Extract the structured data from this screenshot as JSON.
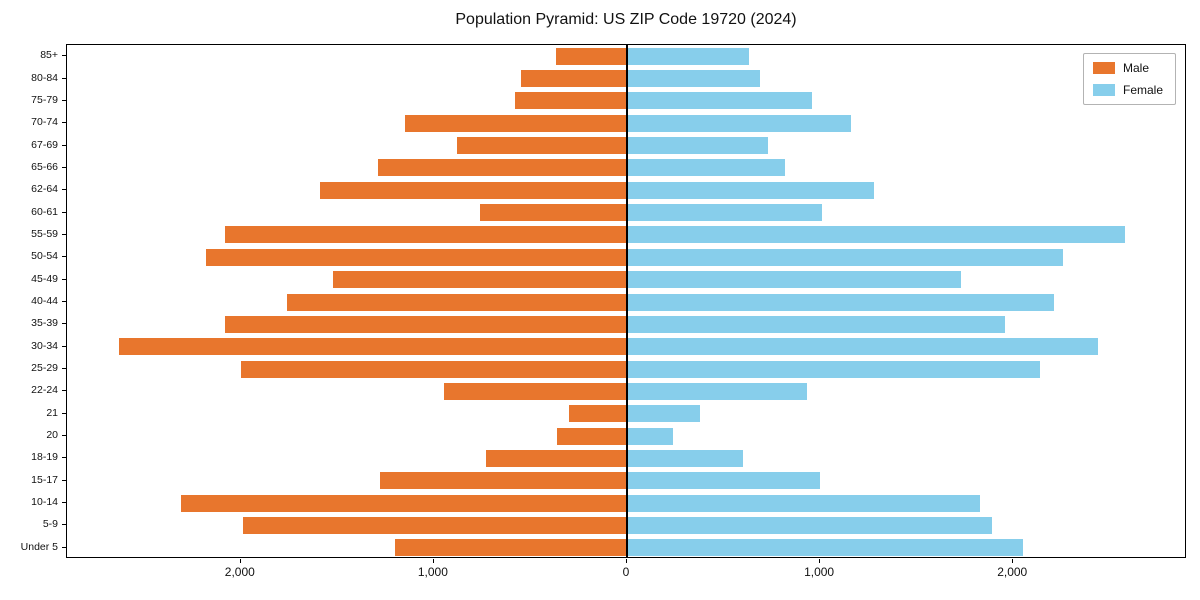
{
  "title": "Population Pyramid: US ZIP Code 19720 (2024)",
  "legend": {
    "male_label": "Male",
    "female_label": "Female"
  },
  "chart_data": {
    "type": "bar",
    "subtype": "population-pyramid",
    "orientation": "horizontal",
    "title": "Population Pyramid: US ZIP Code 19720 (2024)",
    "xlabel": "",
    "ylabel": "",
    "categories": [
      "85+",
      "80-84",
      "75-79",
      "70-74",
      "67-69",
      "65-66",
      "62-64",
      "60-61",
      "55-59",
      "50-54",
      "45-49",
      "40-44",
      "35-39",
      "30-34",
      "25-29",
      "22-24",
      "21",
      "20",
      "18-19",
      "15-17",
      "10-14",
      "5-9",
      "Under 5"
    ],
    "series": [
      {
        "name": "Male",
        "color": "#e8762d",
        "side": "left",
        "values": [
          370,
          550,
          580,
          1150,
          880,
          1290,
          1590,
          760,
          2080,
          2180,
          1520,
          1760,
          2080,
          2630,
          2000,
          950,
          300,
          360,
          730,
          1280,
          2310,
          1990,
          1200
        ]
      },
      {
        "name": "Female",
        "color": "#87ceeb",
        "side": "right",
        "values": [
          630,
          690,
          960,
          1160,
          730,
          820,
          1280,
          1010,
          2580,
          2260,
          1730,
          2210,
          1960,
          2440,
          2140,
          930,
          380,
          240,
          600,
          1000,
          1830,
          1890,
          2050
        ]
      }
    ],
    "x_ticks": [
      -2000,
      -1000,
      0,
      1000,
      2000
    ],
    "x_tick_labels": [
      "2,000",
      "1,000",
      "0",
      "1,000",
      "2,000"
    ],
    "xlim": [
      -2900,
      2900
    ],
    "grid": false,
    "legend_position": "upper right",
    "zero_axis_line": true
  }
}
